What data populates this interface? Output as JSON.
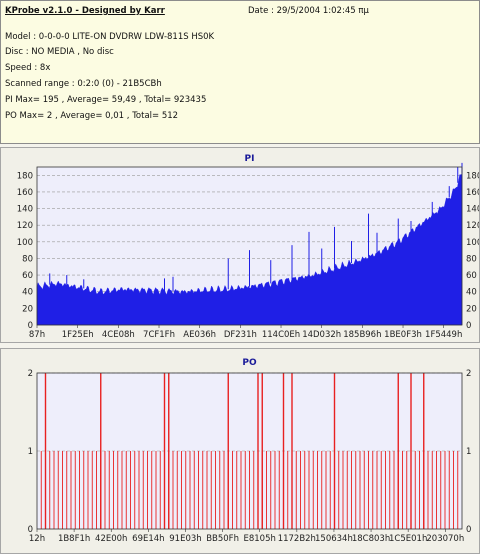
{
  "header": {
    "app_title": "KProbe v2.1.0 - Designed by Karr",
    "date_text": "Date : 29/5/2004 1:02:45 πμ",
    "lines": [
      "Model : 0-0-0-0 LITE-ON DVDRW LDW-811S   HS0K",
      "Disc : NO MEDIA , No disc",
      "Speed : 8x",
      "Scanned range : 0:2:0 (0) - 21B5CBh",
      "PI Max= 195 , Average= 59,49 , Total= 923435",
      "PO Max= 2 , Average= 0,01 , Total= 512"
    ]
  },
  "colors": {
    "pi_fill": "#1f1fe6",
    "po_bar": "#e82020",
    "plot_bg": "#eeeefb",
    "title_blue": "#1a1a99"
  },
  "chart_data": [
    {
      "type": "area",
      "title": "PI",
      "ylim": [
        0,
        190
      ],
      "yticks": [
        0,
        20,
        40,
        60,
        80,
        100,
        120,
        140,
        160,
        180
      ],
      "xtick_labels": [
        "87h",
        "1F25Eh",
        "4CE08h",
        "7CF1Fh",
        "AE036h",
        "DF231h",
        "114C0Eh",
        "14D032h",
        "185B96h",
        "1BE0F3h",
        "1F5449h"
      ],
      "grid": true,
      "envelope": [
        [
          0,
          46
        ],
        [
          5,
          50
        ],
        [
          10,
          45
        ],
        [
          15,
          40
        ],
        [
          20,
          43
        ],
        [
          25,
          42
        ],
        [
          30,
          41
        ],
        [
          35,
          40
        ],
        [
          40,
          42
        ],
        [
          45,
          43
        ],
        [
          50,
          46
        ],
        [
          55,
          50
        ],
        [
          60,
          55
        ],
        [
          65,
          60
        ],
        [
          70,
          68
        ],
        [
          75,
          76
        ],
        [
          80,
          86
        ],
        [
          85,
          100
        ],
        [
          90,
          120
        ],
        [
          95,
          140
        ],
        [
          98,
          160
        ],
        [
          100,
          182
        ]
      ],
      "spikes": [
        [
          3,
          62
        ],
        [
          7,
          60
        ],
        [
          11,
          55
        ],
        [
          30,
          56
        ],
        [
          32,
          58
        ],
        [
          45,
          80
        ],
        [
          50,
          90
        ],
        [
          55,
          78
        ],
        [
          60,
          96
        ],
        [
          64,
          112
        ],
        [
          67,
          92
        ],
        [
          70,
          118
        ],
        [
          74,
          101
        ],
        [
          78,
          134
        ],
        [
          80,
          111
        ],
        [
          85,
          128
        ],
        [
          88,
          125
        ],
        [
          93,
          148
        ],
        [
          97,
          167
        ],
        [
          99,
          190
        ],
        [
          100,
          195
        ]
      ]
    },
    {
      "type": "bar",
      "title": "PO",
      "ylim": [
        0,
        2
      ],
      "yticks": [
        0,
        1,
        2
      ],
      "xtick_labels": [
        "12h",
        "1B8F1h",
        "42E00h",
        "69E14h",
        "91E03h",
        "BB50Fh",
        "E8105h",
        "1172B2h",
        "150634h",
        "18C803h",
        "1C5E01h",
        "203070h"
      ],
      "grid": true,
      "level1_positions": [
        1,
        2,
        3,
        4,
        5,
        6,
        7,
        8,
        9,
        10,
        11,
        12,
        13,
        14,
        15,
        16,
        17,
        18,
        19,
        20,
        21,
        22,
        23,
        24,
        25,
        26,
        27,
        28,
        29,
        30,
        31,
        32,
        33,
        34,
        35,
        36,
        37,
        38,
        39,
        40,
        41,
        42,
        43,
        44,
        45,
        46,
        47,
        48,
        49,
        50,
        51,
        52,
        53,
        54,
        55,
        56,
        57,
        58,
        59,
        60,
        61,
        62,
        63,
        64,
        65,
        66,
        67,
        68,
        69,
        70,
        71,
        72,
        73,
        74,
        75,
        76,
        77,
        78,
        79,
        80,
        81,
        82,
        83,
        84,
        85,
        86,
        87,
        88,
        89,
        90,
        91,
        92,
        93,
        94,
        95,
        96,
        97,
        98,
        99
      ],
      "level2_positions": [
        2,
        15,
        30,
        31,
        45,
        52,
        53,
        58,
        60,
        70,
        85,
        88,
        91
      ]
    }
  ]
}
